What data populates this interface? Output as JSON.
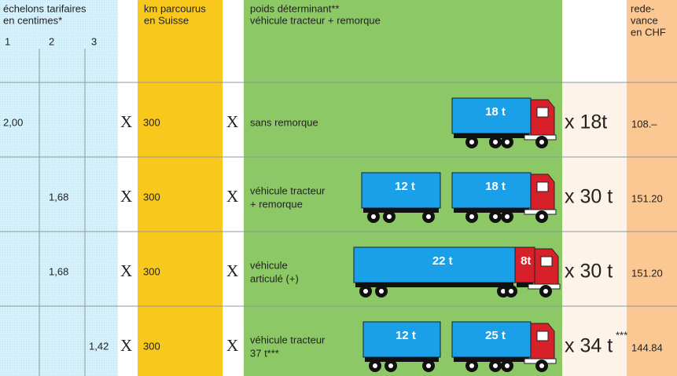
{
  "header": {
    "tariff_title": [
      "échelons tarifaires",
      "en centimes*"
    ],
    "tariff_levels": [
      "1",
      "2",
      "3"
    ],
    "km": [
      "km parcourus",
      "en Suisse"
    ],
    "weight": [
      "poids déterminant**",
      "véhicule tracteur + remorque"
    ],
    "fee": [
      "rede-",
      "vance",
      "en CHF"
    ]
  },
  "rows": [
    {
      "tariffs": [
        "2,00",
        null,
        null
      ],
      "signs": [
        "X",
        "X"
      ],
      "km": "300",
      "vehicle": [
        "sans remorque"
      ],
      "loads": [
        "18 t"
      ],
      "weight": "x 18t",
      "fee": "108.–"
    },
    {
      "tariffs": [
        null,
        "1,68",
        null
      ],
      "signs": [
        "X",
        "X"
      ],
      "km": "300",
      "vehicle": [
        "véhicule tracteur",
        "+ remorque"
      ],
      "loads": [
        "12 t",
        "18 t"
      ],
      "weight": "x 30 t",
      "fee": "151.20"
    },
    {
      "tariffs": [
        null,
        "1,68",
        null
      ],
      "signs": [
        "X",
        "X"
      ],
      "km": "300",
      "vehicle": [
        "véhicule",
        "articulé (+)"
      ],
      "loads": [
        "22 t",
        "8t"
      ],
      "weight": "x 30 t",
      "fee": "151.20"
    },
    {
      "tariffs": [
        null,
        null,
        "1,42"
      ],
      "signs": [
        "X",
        "X"
      ],
      "km": "300",
      "vehicle": [
        "véhicule tracteur",
        "37 t***"
      ],
      "loads": [
        "12 t",
        "25 t"
      ],
      "weight": "x 34 t",
      "weight_note": "***",
      "fee": "144.84"
    }
  ]
}
